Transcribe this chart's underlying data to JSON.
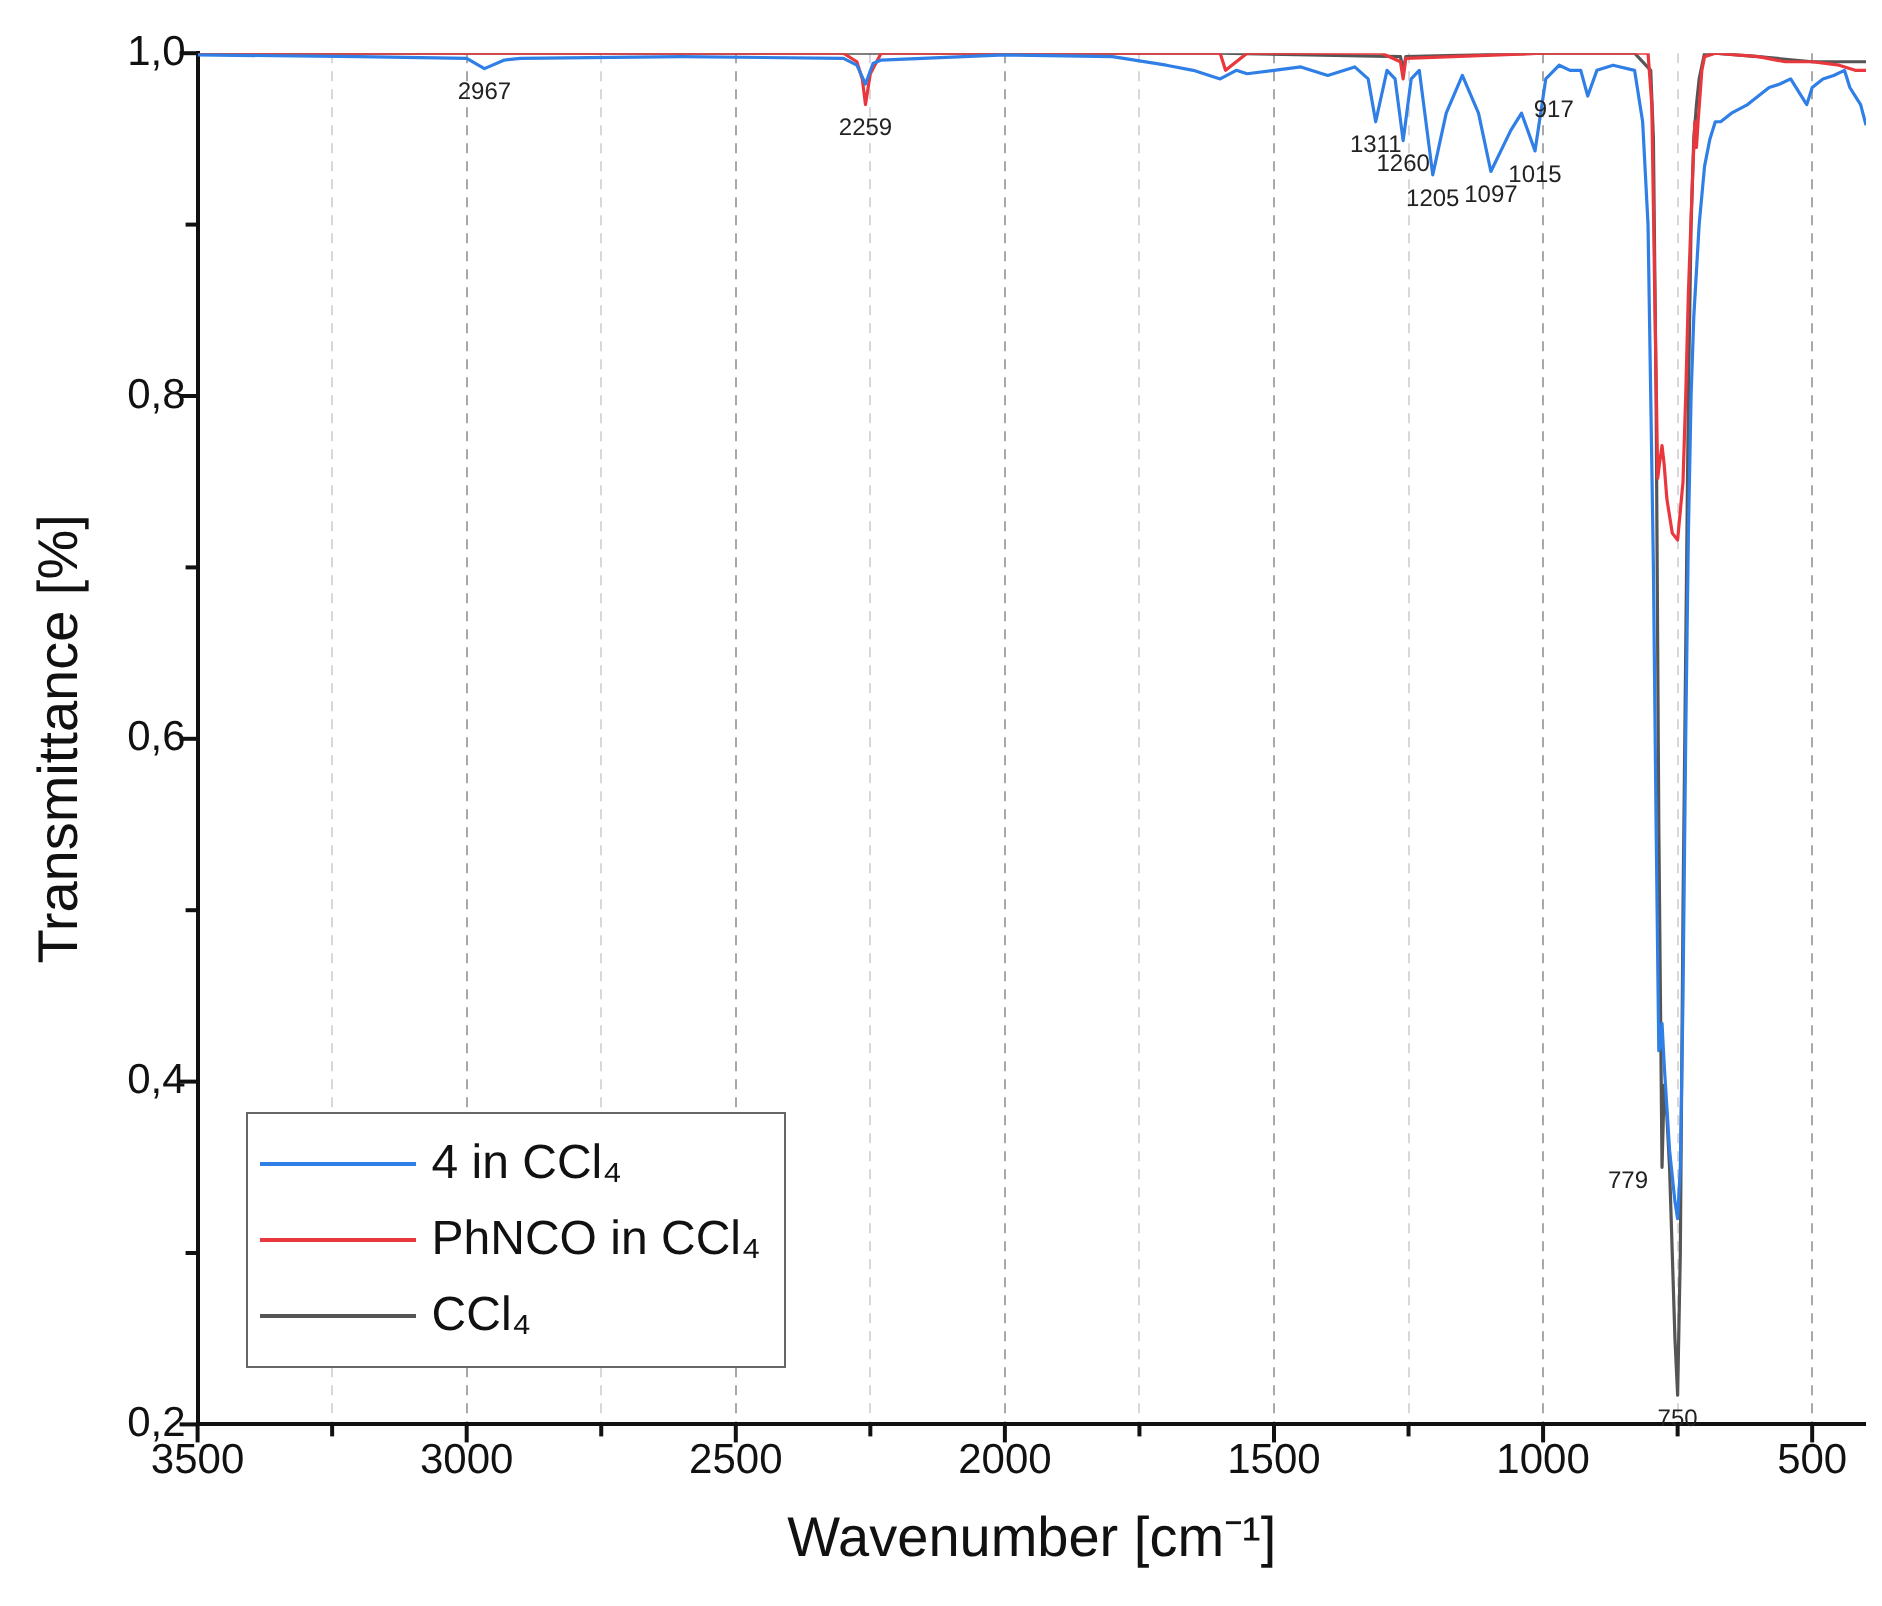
{
  "chart_data": {
    "type": "line",
    "xlabel": "Wavenumber [cm⁻¹]",
    "ylabel": "Transmittance [%]",
    "xlim": [
      3500,
      400
    ],
    "xticks": [
      3500,
      {
        "value": 3250,
        "label": null
      },
      3000,
      {
        "value": 2750,
        "label": null
      },
      2500,
      {
        "value": 2250,
        "label": null
      },
      2000,
      {
        "value": 1750,
        "label": null
      },
      1500,
      {
        "value": 1250,
        "label": null
      },
      1000,
      {
        "value": 750,
        "label": null
      },
      500
    ],
    "ylim": [
      0.2,
      1.0
    ],
    "yticks": [
      {
        "value": 0.2,
        "label": "0,2"
      },
      {
        "value": 0.3,
        "label": null
      },
      {
        "value": 0.4,
        "label": "0,4"
      },
      {
        "value": 0.5,
        "label": null
      },
      {
        "value": 0.6,
        "label": "0,6"
      },
      {
        "value": 0.7,
        "label": null
      },
      {
        "value": 0.8,
        "label": "0,8"
      },
      {
        "value": 0.9,
        "label": null
      },
      {
        "value": 1.0,
        "label": "1,0"
      }
    ],
    "grid": "x",
    "legend": "bottom left",
    "marker": "none",
    "line_style": "solid",
    "series": [
      {
        "name": "4 in CCl₄",
        "color": "#2f7fe6",
        "x": [
          3500,
          3200,
          3000,
          2967,
          2930,
          2900,
          2600,
          2300,
          2275,
          2259,
          2245,
          2230,
          2000,
          1800,
          1700,
          1650,
          1600,
          1570,
          1550,
          1500,
          1450,
          1400,
          1350,
          1325,
          1311,
          1290,
          1275,
          1260,
          1245,
          1230,
          1205,
          1180,
          1150,
          1120,
          1097,
          1060,
          1040,
          1015,
          995,
          970,
          950,
          930,
          917,
          900,
          870,
          830,
          815,
          805,
          795,
          790,
          785,
          782,
          779,
          775,
          765,
          755,
          750,
          745,
          740,
          735,
          730,
          725,
          720,
          710,
          700,
          690,
          680,
          670,
          650,
          620,
          600,
          580,
          560,
          540,
          520,
          510,
          500,
          480,
          460,
          440,
          430,
          420,
          410,
          400
        ],
        "values": [
          0.999,
          0.998,
          0.997,
          0.991,
          0.996,
          0.997,
          0.998,
          0.997,
          0.993,
          0.982,
          0.994,
          0.996,
          0.999,
          0.998,
          0.993,
          0.99,
          0.985,
          0.99,
          0.988,
          0.99,
          0.992,
          0.987,
          0.992,
          0.985,
          0.96,
          0.99,
          0.985,
          0.949,
          0.985,
          0.99,
          0.929,
          0.965,
          0.987,
          0.965,
          0.931,
          0.955,
          0.965,
          0.943,
          0.985,
          0.993,
          0.99,
          0.99,
          0.975,
          0.99,
          0.993,
          0.99,
          0.96,
          0.9,
          0.7,
          0.55,
          0.418,
          0.42,
          0.434,
          0.41,
          0.36,
          0.33,
          0.32,
          0.35,
          0.45,
          0.6,
          0.72,
          0.8,
          0.846,
          0.9,
          0.934,
          0.95,
          0.96,
          0.96,
          0.965,
          0.97,
          0.975,
          0.98,
          0.982,
          0.985,
          0.975,
          0.97,
          0.98,
          0.985,
          0.987,
          0.99,
          0.98,
          0.975,
          0.97,
          0.958
        ]
      },
      {
        "name": "PhNCO in CCl₄",
        "color": "#e8383d",
        "x": [
          3500,
          3000,
          2300,
          2275,
          2265,
          2259,
          2250,
          2230,
          2000,
          1600,
          1590,
          1550,
          1300,
          1265,
          1260,
          1255,
          1000,
          830,
          805,
          798,
          792,
          787,
          784,
          779,
          775,
          770,
          760,
          750,
          740,
          735,
          730,
          722,
          718,
          715,
          712,
          705,
          700,
          680,
          600,
          550,
          500,
          450,
          420,
          400
        ],
        "values": [
          1.0,
          1.0,
          1.0,
          0.995,
          0.985,
          0.97,
          0.988,
          1.0,
          1.0,
          1.0,
          0.99,
          1.0,
          1.0,
          0.995,
          0.985,
          0.997,
          1.0,
          1.0,
          1.0,
          0.97,
          0.85,
          0.752,
          0.76,
          0.771,
          0.76,
          0.74,
          0.72,
          0.716,
          0.75,
          0.8,
          0.86,
          0.93,
          0.96,
          0.945,
          0.96,
          0.99,
          0.998,
          1.0,
          0.998,
          0.995,
          0.995,
          0.993,
          0.99,
          0.99
        ]
      },
      {
        "name": "CCl₄",
        "color": "#555555",
        "x": [
          3500,
          3000,
          2259,
          1600,
          1265,
          1260,
          1255,
          1000,
          830,
          800,
          795,
          790,
          785,
          782,
          779,
          775,
          770,
          765,
          760,
          755,
          750,
          745,
          740,
          735,
          730,
          725,
          720,
          715,
          710,
          700,
          680,
          600,
          500,
          400
        ],
        "values": [
          1.0,
          1.0,
          1.0,
          1.0,
          0.998,
          0.99,
          0.998,
          1.0,
          1.0,
          0.99,
          0.95,
          0.8,
          0.55,
          0.45,
          0.35,
          0.398,
          0.38,
          0.35,
          0.3,
          0.25,
          0.217,
          0.3,
          0.5,
          0.65,
          0.8,
          0.9,
          0.95,
          0.97,
          0.985,
          1.0,
          1.0,
          0.998,
          0.995,
          0.995
        ]
      }
    ],
    "annotations": [
      {
        "text": "2967",
        "x": 2967,
        "y": 0.991
      },
      {
        "text": "2259",
        "x": 2259,
        "y": 0.97
      },
      {
        "text": "1311",
        "x": 1311,
        "y": 0.96
      },
      {
        "text": "1260",
        "x": 1260,
        "y": 0.949
      },
      {
        "text": "1205",
        "x": 1205,
        "y": 0.929
      },
      {
        "text": "1097",
        "x": 1097,
        "y": 0.931
      },
      {
        "text": "1015",
        "x": 1015,
        "y": 0.943
      },
      {
        "text": "917",
        "x": 917,
        "y": 0.975
      },
      {
        "text": "779",
        "x": 779,
        "y": 0.35
      },
      {
        "text": "750",
        "x": 750,
        "y": 0.217
      }
    ]
  }
}
